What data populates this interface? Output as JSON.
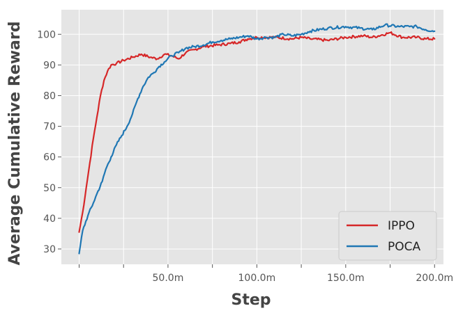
{
  "chart_data": {
    "type": "line",
    "title": "",
    "xlabel": "Step",
    "ylabel": "Average Cumulative Reward",
    "xlim": [
      -10,
      205
    ],
    "ylim": [
      25,
      108
    ],
    "grid": true,
    "legend_position": "bottom-right",
    "x_ticks": [
      {
        "value": 0,
        "label": ""
      },
      {
        "value": 25,
        "label": ""
      },
      {
        "value": 50,
        "label": "50.0m"
      },
      {
        "value": 75,
        "label": ""
      },
      {
        "value": 100,
        "label": "100.0m"
      },
      {
        "value": 125,
        "label": ""
      },
      {
        "value": 150,
        "label": "150.0m"
      },
      {
        "value": 175,
        "label": ""
      },
      {
        "value": 200,
        "label": "200.0m"
      }
    ],
    "y_ticks": [
      30,
      40,
      50,
      60,
      70,
      80,
      90,
      100
    ],
    "series": [
      {
        "name": "IPPO",
        "color": "#d62728",
        "points": [
          [
            0,
            35.5
          ],
          [
            2,
            42
          ],
          [
            4,
            50
          ],
          [
            6,
            58
          ],
          [
            8,
            66
          ],
          [
            10,
            73
          ],
          [
            12,
            80
          ],
          [
            14,
            85
          ],
          [
            16,
            88
          ],
          [
            18,
            90
          ],
          [
            21,
            90.5
          ],
          [
            25,
            91.5
          ],
          [
            30,
            92.5
          ],
          [
            35,
            93.5
          ],
          [
            40,
            92.5
          ],
          [
            44,
            92
          ],
          [
            48,
            93.5
          ],
          [
            52,
            93
          ],
          [
            56,
            92
          ],
          [
            60,
            94
          ],
          [
            65,
            95
          ],
          [
            70,
            96
          ],
          [
            78,
            96.5
          ],
          [
            85,
            97
          ],
          [
            90,
            97.5
          ],
          [
            95,
            98.5
          ],
          [
            100,
            99
          ],
          [
            110,
            99
          ],
          [
            120,
            98.5
          ],
          [
            125,
            99
          ],
          [
            130,
            98.5
          ],
          [
            140,
            98
          ],
          [
            150,
            99
          ],
          [
            160,
            99.5
          ],
          [
            165,
            99
          ],
          [
            175,
            100.5
          ],
          [
            182,
            99
          ],
          [
            190,
            99
          ],
          [
            195,
            98.5
          ],
          [
            200,
            98.5
          ]
        ]
      },
      {
        "name": "POCA",
        "color": "#1f77b4",
        "points": [
          [
            0,
            28.5
          ],
          [
            2,
            36
          ],
          [
            5,
            41
          ],
          [
            8,
            45
          ],
          [
            10,
            48
          ],
          [
            13,
            52
          ],
          [
            15,
            56
          ],
          [
            18,
            60
          ],
          [
            21,
            64
          ],
          [
            24,
            67
          ],
          [
            27,
            70
          ],
          [
            30,
            74
          ],
          [
            33,
            79
          ],
          [
            36,
            83
          ],
          [
            39,
            86
          ],
          [
            42,
            87.5
          ],
          [
            45,
            89.5
          ],
          [
            48,
            91
          ],
          [
            52,
            93
          ],
          [
            56,
            94
          ],
          [
            60,
            95.5
          ],
          [
            65,
            96
          ],
          [
            70,
            96.5
          ],
          [
            75,
            97.5
          ],
          [
            80,
            98
          ],
          [
            85,
            98.5
          ],
          [
            90,
            99
          ],
          [
            95,
            99.5
          ],
          [
            100,
            98.5
          ],
          [
            105,
            99
          ],
          [
            110,
            99
          ],
          [
            115,
            100
          ],
          [
            120,
            99.5
          ],
          [
            125,
            100
          ],
          [
            130,
            101
          ],
          [
            140,
            102
          ],
          [
            150,
            102.5
          ],
          [
            158,
            102
          ],
          [
            165,
            101.5
          ],
          [
            172,
            103
          ],
          [
            180,
            102.5
          ],
          [
            186,
            102.5
          ],
          [
            190,
            102.5
          ],
          [
            195,
            101.5
          ],
          [
            200,
            101
          ]
        ]
      }
    ]
  }
}
